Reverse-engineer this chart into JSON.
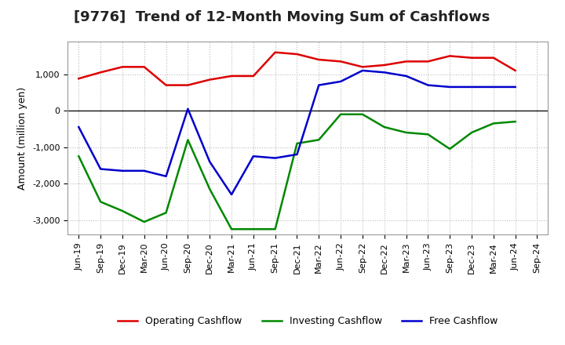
{
  "title": "[9776]  Trend of 12-Month Moving Sum of Cashflows",
  "ylabel": "Amount (million yen)",
  "ylim": [
    -3400,
    1900
  ],
  "yticks": [
    -3000,
    -2000,
    -1000,
    0,
    1000
  ],
  "background_color": "#ffffff",
  "plot_bg_color": "#ffffff",
  "grid_color": "#bbbbbb",
  "labels": [
    "Jun-19",
    "Sep-19",
    "Dec-19",
    "Mar-20",
    "Jun-20",
    "Sep-20",
    "Dec-20",
    "Mar-21",
    "Jun-21",
    "Sep-21",
    "Dec-21",
    "Mar-22",
    "Jun-22",
    "Sep-22",
    "Dec-22",
    "Mar-23",
    "Jun-23",
    "Sep-23",
    "Dec-23",
    "Mar-24",
    "Jun-24",
    "Sep-24"
  ],
  "operating": [
    880,
    1050,
    1200,
    1200,
    700,
    700,
    850,
    950,
    950,
    1600,
    1550,
    1400,
    1350,
    1200,
    1250,
    1350,
    1350,
    1500,
    1450,
    1450,
    1100,
    null
  ],
  "investing": [
    -1250,
    -2500,
    -2750,
    -3050,
    -2800,
    -800,
    -2150,
    -3250,
    -3250,
    -3250,
    -900,
    -800,
    -100,
    -100,
    -450,
    -600,
    -650,
    -1050,
    -600,
    -350,
    -300,
    null
  ],
  "free": [
    -450,
    -1600,
    -1650,
    -1650,
    -1800,
    50,
    -1400,
    -2300,
    -1250,
    -1300,
    -1200,
    700,
    800,
    1100,
    1050,
    950,
    700,
    650,
    650,
    650,
    650,
    null
  ],
  "operating_color": "#dd0000",
  "investing_color": "#008800",
  "free_color": "#0000cc",
  "line_width": 1.8,
  "title_fontsize": 13,
  "axis_fontsize": 9,
  "tick_fontsize": 8
}
